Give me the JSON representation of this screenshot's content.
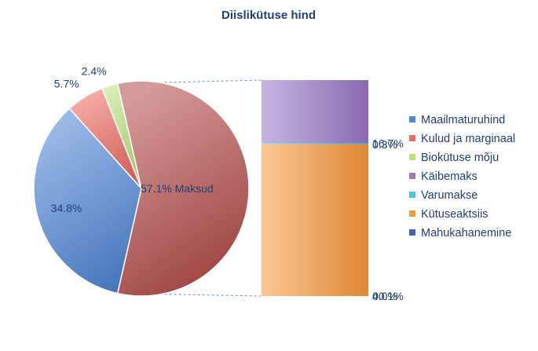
{
  "chart_data": {
    "type": "pie",
    "title": "Diislikütuse hind",
    "pie": {
      "slices": [
        {
          "name": "Maksud",
          "value": 57.1,
          "label": "57.1% Maksud",
          "color": "#b24a47"
        },
        {
          "name": "Maailmaturuhind",
          "value": 34.8,
          "label": "34.8%",
          "color": "#4f86d6"
        },
        {
          "name": "Kulud ja marginaal",
          "value": 5.7,
          "label": "5.7%",
          "color": "#ee6b62"
        },
        {
          "name": "Biokütuse mõju",
          "value": 2.4,
          "label": "2.4%",
          "color": "#b9e27a"
        }
      ]
    },
    "bar": {
      "segments": [
        {
          "name": "Mahukahanemine",
          "value": 0.0,
          "label": "0.0%",
          "color": "#4a63a8"
        },
        {
          "name": "Kütuseaktsiis",
          "value": 40.1,
          "label": "40.1%",
          "color": "#fb9a3b"
        },
        {
          "name": "Varumakse",
          "value": 0.3,
          "label": "0.3%",
          "color": "#4cc6dd"
        },
        {
          "name": "Käibemaks",
          "value": 16.7,
          "label": "16.7%",
          "color": "#9a79c8"
        }
      ]
    },
    "legend": {
      "position": "right",
      "entries": [
        {
          "name": "Maailmaturuhind",
          "color": "#4f86d6"
        },
        {
          "name": "Kulud ja marginaal",
          "color": "#ee6b62"
        },
        {
          "name": "Biokütuse mõju",
          "color": "#b9e27a"
        },
        {
          "name": "Käibemaks",
          "color": "#9a79c8"
        },
        {
          "name": "Varumakse",
          "color": "#4cc6dd"
        },
        {
          "name": "Kütuseaktsiis",
          "color": "#fb9a3b"
        },
        {
          "name": "Mahukahanemine",
          "color": "#4a63a8"
        }
      ]
    }
  }
}
